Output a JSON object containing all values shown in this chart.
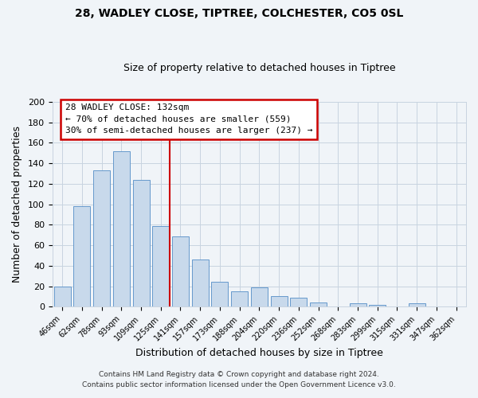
{
  "title": "28, WADLEY CLOSE, TIPTREE, COLCHESTER, CO5 0SL",
  "subtitle": "Size of property relative to detached houses in Tiptree",
  "xlabel": "Distribution of detached houses by size in Tiptree",
  "ylabel": "Number of detached properties",
  "bins": [
    "46sqm",
    "62sqm",
    "78sqm",
    "93sqm",
    "109sqm",
    "125sqm",
    "141sqm",
    "157sqm",
    "173sqm",
    "188sqm",
    "204sqm",
    "220sqm",
    "236sqm",
    "252sqm",
    "268sqm",
    "283sqm",
    "299sqm",
    "315sqm",
    "331sqm",
    "347sqm",
    "362sqm"
  ],
  "values": [
    20,
    98,
    133,
    152,
    124,
    79,
    69,
    46,
    24,
    15,
    19,
    10,
    9,
    4,
    0,
    3,
    2,
    0,
    3,
    0,
    0
  ],
  "bar_color": "#c8d9eb",
  "bar_edge_color": "#6699cc",
  "vline_color": "#cc0000",
  "vline_pos": 5.44,
  "ylim": [
    0,
    200
  ],
  "yticks": [
    0,
    20,
    40,
    60,
    80,
    100,
    120,
    140,
    160,
    180,
    200
  ],
  "annotation_title": "28 WADLEY CLOSE: 132sqm",
  "annotation_line1": "← 70% of detached houses are smaller (559)",
  "annotation_line2": "30% of semi-detached houses are larger (237) →",
  "annotation_box_color": "#ffffff",
  "annotation_box_edge": "#cc0000",
  "footer1": "Contains HM Land Registry data © Crown copyright and database right 2024.",
  "footer2": "Contains public sector information licensed under the Open Government Licence v3.0.",
  "grid_color": "#c8d4e0",
  "background_color": "#f0f4f8",
  "title_fontsize": 10,
  "subtitle_fontsize": 9,
  "xlabel_fontsize": 9,
  "ylabel_fontsize": 9,
  "tick_fontsize": 7,
  "ann_fontsize": 8,
  "footer_fontsize": 6.5
}
